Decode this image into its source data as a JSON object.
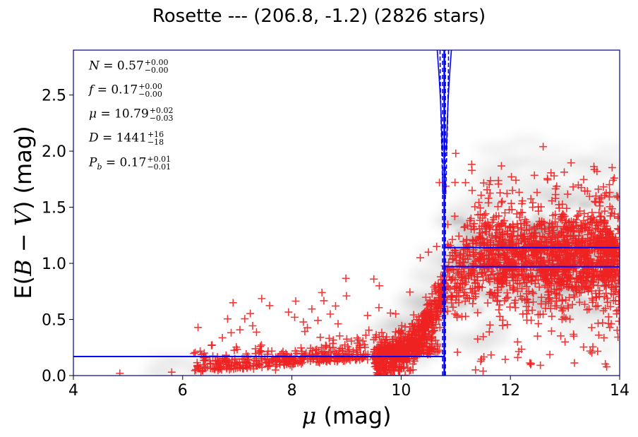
{
  "chart_data": {
    "type": "scatter",
    "title": "Rosette --- (206.8, -1.2) (2826 stars)",
    "xlabel": "μ (mag)",
    "ylabel": "E(B − V) (mag)",
    "xlim": [
      4,
      14
    ],
    "ylim": [
      0,
      2.9
    ],
    "xticks": [
      "4",
      "6",
      "8",
      "10",
      "12",
      "14"
    ],
    "yticks": [
      "0.0",
      "0.5",
      "1.0",
      "1.5",
      "2.0",
      "2.5"
    ],
    "grid": false,
    "background": "grayscale density map of model probability",
    "colors": {
      "points": "#ee2222",
      "fit_lines": "#0000ff",
      "axes_frame": "#00008b"
    },
    "annotations": {
      "N": {
        "label": "N",
        "value": "0.57",
        "plus": "+0.00",
        "minus": "−0.00"
      },
      "f": {
        "label": "f",
        "value": "0.17",
        "plus": "+0.00",
        "minus": "−0.00"
      },
      "mu": {
        "label": "μ",
        "value": "10.79",
        "plus": "+0.02",
        "minus": "−0.03"
      },
      "D": {
        "label": "D",
        "value": "1441",
        "plus": "+16",
        "minus": "−18"
      },
      "Pb": {
        "label": "P",
        "sub": "b",
        "value": "0.17",
        "plus": "+0.01",
        "minus": "−0.01"
      }
    },
    "fit_model": {
      "distance_modulus": 10.79,
      "distance_modulus_lower": 10.76,
      "distance_modulus_upper": 10.81,
      "extinction_foreground": 0.17,
      "extinction_background_lower": 0.97,
      "extinction_background_upper": 1.14
    },
    "scatter_summary": {
      "n_points": 2826,
      "sample_points": [
        [
          4.85,
          0.02
        ],
        [
          5.8,
          0.03
        ],
        [
          6.4,
          0.07
        ],
        [
          6.7,
          0.08
        ],
        [
          7.0,
          0.07
        ],
        [
          7.3,
          0.06
        ],
        [
          7.7,
          0.05
        ],
        [
          8.0,
          0.08
        ],
        [
          8.2,
          0.16
        ],
        [
          8.5,
          0.12
        ],
        [
          8.55,
          0.74
        ],
        [
          8.8,
          0.62
        ],
        [
          9.0,
          0.71
        ],
        [
          9.2,
          0.29
        ],
        [
          9.5,
          0.86
        ],
        [
          9.6,
          0.8
        ],
        [
          9.9,
          0.55
        ],
        [
          10.2,
          0.46
        ],
        [
          10.35,
          1.05
        ],
        [
          10.5,
          1.1
        ],
        [
          10.65,
          1.15
        ],
        [
          10.7,
          1.72
        ],
        [
          10.9,
          1.16
        ],
        [
          11.0,
          1.98
        ],
        [
          11.3,
          1.65
        ],
        [
          11.6,
          1.58
        ],
        [
          11.9,
          1.45
        ],
        [
          12.2,
          1.3
        ],
        [
          12.6,
          2.04
        ],
        [
          12.8,
          1.25
        ],
        [
          13.2,
          1.2
        ],
        [
          13.5,
          1.12
        ],
        [
          13.9,
          1.76
        ],
        [
          13.95,
          1.6
        ],
        [
          13.0,
          0.3
        ],
        [
          11.5,
          0.04
        ]
      ]
    }
  }
}
